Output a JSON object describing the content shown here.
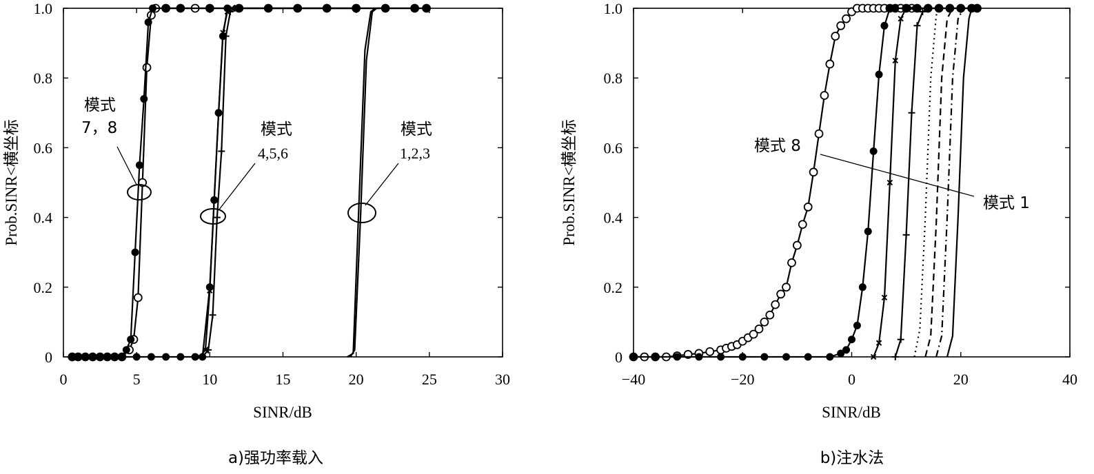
{
  "chart_data": [
    {
      "type": "line",
      "caption": "a)强功率载入",
      "xlabel": "SINR/dB",
      "ylabel": "Prob.SINR<横坐标",
      "xlim": [
        0,
        30
      ],
      "ylim": [
        0,
        1.0
      ],
      "xticks": [
        "0",
        "5",
        "10",
        "15",
        "20",
        "25",
        "30"
      ],
      "yticks": [
        "0",
        "0.2",
        "0.4",
        "0.6",
        "0.8",
        "1.0"
      ],
      "grid": false,
      "series": [
        {
          "marker": "o",
          "x": [
            0.6,
            1.0,
            1.5,
            2.0,
            2.5,
            3.0,
            3.5,
            4.0,
            4.5,
            4.8,
            5.1,
            5.4,
            5.7,
            6.0,
            6.3,
            7.0,
            8.0,
            9.0,
            10.0,
            12.0,
            14.0,
            16.0,
            18.0,
            20.0,
            22.0,
            24.0,
            24.8
          ],
          "y": [
            0,
            0,
            0,
            0,
            0,
            0,
            0,
            0,
            0.02,
            0.05,
            0.17,
            0.5,
            0.83,
            0.98,
            1.0,
            1.0,
            1.0,
            1.0,
            1.0,
            1.0,
            1.0,
            1.0,
            1.0,
            1.0,
            1.0,
            1.0,
            1.0
          ]
        },
        {
          "marker": "*",
          "x": [
            0.6,
            1.0,
            1.5,
            2.0,
            2.5,
            3.0,
            3.5,
            4.0,
            4.3,
            4.6,
            4.9,
            5.2,
            5.5,
            5.8,
            6.1,
            7.0,
            8.0,
            10.0,
            12.0,
            14.0,
            16.0,
            18.0,
            20.0,
            22.0,
            24.0,
            24.8
          ],
          "y": [
            0,
            0,
            0,
            0,
            0,
            0,
            0,
            0,
            0.02,
            0.05,
            0.3,
            0.55,
            0.74,
            0.96,
            1.0,
            1.0,
            1.0,
            1.0,
            1.0,
            1.0,
            1.0,
            1.0,
            1.0,
            1.0,
            1.0,
            1.0
          ]
        },
        {
          "marker": "*",
          "x": [
            4.0,
            5.0,
            6.0,
            7.0,
            8.0,
            9.0,
            9.5,
            10.0,
            10.3,
            10.6,
            10.9,
            11.2,
            12.0,
            14.0,
            16.0,
            18.0,
            20.0
          ],
          "y": [
            0,
            0,
            0,
            0,
            0,
            0,
            0.0,
            0.2,
            0.45,
            0.7,
            0.92,
            1.0,
            1.0,
            1.0,
            1.0,
            1.0,
            1.0
          ]
        },
        {
          "marker": "x",
          "x": [
            9.3,
            9.7,
            10.0,
            10.3,
            10.6,
            10.9,
            11.2,
            11.5
          ],
          "y": [
            0,
            0.02,
            0.19,
            0.45,
            0.7,
            0.93,
            0.99,
            1.0
          ]
        },
        {
          "marker": "+",
          "x": [
            9.5,
            9.9,
            10.2,
            10.5,
            10.8,
            11.1,
            11.4,
            11.7
          ],
          "y": [
            0,
            0.02,
            0.12,
            0.4,
            0.59,
            0.92,
            0.99,
            1.0
          ]
        },
        {
          "marker": "none",
          "x": [
            19.6,
            19.9,
            20.3,
            20.7,
            21.1,
            21.4,
            21.7
          ],
          "y": [
            0,
            0.02,
            0.4,
            0.85,
            0.99,
            1.0,
            1.0
          ]
        },
        {
          "marker": "none",
          "x": [
            19.4,
            19.8,
            20.2,
            20.6,
            21.0,
            21.3
          ],
          "y": [
            0,
            0.01,
            0.45,
            0.88,
            0.99,
            1.0
          ]
        }
      ],
      "annotations": [
        {
          "lines": [
            "模式",
            "7，8"
          ]
        },
        {
          "lines": [
            "模式",
            "4,5,6"
          ]
        },
        {
          "lines": [
            "模式",
            "1,2,3"
          ]
        }
      ]
    },
    {
      "type": "line",
      "caption": "b)注水法",
      "xlabel": "SINR/dB",
      "ylabel": "Prob.SINR<横坐标",
      "xlim": [
        -40,
        40
      ],
      "ylim": [
        0,
        1.0
      ],
      "xticks": [
        "−40",
        "−20",
        "0",
        "20",
        "40"
      ],
      "yticks": [
        "0",
        "0.2",
        "0.4",
        "0.6",
        "0.8",
        "1.0"
      ],
      "grid": false,
      "series": [
        {
          "marker": "o",
          "x": [
            -40,
            -38,
            -36,
            -34,
            -32,
            -30,
            -28,
            -26,
            -24,
            -23,
            -22,
            -21,
            -20,
            -19,
            -18,
            -17,
            -16,
            -15,
            -14,
            -13,
            -12,
            -11,
            -10,
            -9,
            -8,
            -7,
            -6,
            -5,
            -4,
            -3,
            -2,
            -1,
            0,
            1,
            2,
            3,
            4,
            5,
            6,
            7,
            8,
            9,
            10,
            11,
            12,
            14,
            16,
            18,
            20,
            22,
            23
          ],
          "y": [
            0,
            0,
            0,
            0,
            0.003,
            0.007,
            0.01,
            0.015,
            0.02,
            0.025,
            0.03,
            0.035,
            0.045,
            0.055,
            0.065,
            0.08,
            0.1,
            0.12,
            0.15,
            0.18,
            0.2,
            0.27,
            0.32,
            0.38,
            0.43,
            0.53,
            0.64,
            0.75,
            0.84,
            0.92,
            0.95,
            0.97,
            0.99,
            1.0,
            1.0,
            1.0,
            1.0,
            1.0,
            1.0,
            1.0,
            1.0,
            1.0,
            1.0,
            1.0,
            1.0,
            1.0,
            1.0,
            1.0,
            1.0,
            1.0,
            1.0
          ]
        },
        {
          "marker": "*",
          "x": [
            -40,
            -36,
            -32,
            -28,
            -24,
            -20,
            -16,
            -12,
            -8,
            -4,
            -2,
            -1,
            0,
            1,
            2,
            3,
            4,
            5,
            6,
            7,
            8,
            10,
            12,
            14,
            16,
            18,
            20,
            22,
            23
          ],
          "y": [
            0,
            0,
            0,
            0,
            0,
            0,
            0,
            0,
            0,
            0,
            0.01,
            0.02,
            0.05,
            0.09,
            0.2,
            0.36,
            0.59,
            0.81,
            0.95,
            1.0,
            1.0,
            1.0,
            1.0,
            1.0,
            1.0,
            1.0,
            1.0,
            1.0,
            1.0
          ]
        },
        {
          "marker": "x",
          "x": [
            4.0,
            5.0,
            6.0,
            7.0,
            8.0,
            9.0,
            10.0,
            11.0,
            12.0
          ],
          "y": [
            0,
            0.04,
            0.17,
            0.5,
            0.85,
            0.97,
            1.0,
            1.0,
            1.0
          ]
        },
        {
          "marker": "+",
          "x": [
            8.0,
            9.0,
            10.0,
            11.0,
            12.0,
            13.0,
            14.0
          ],
          "y": [
            0,
            0.05,
            0.35,
            0.7,
            0.95,
            0.99,
            1.0
          ]
        },
        {
          "marker": "dotted",
          "x": [
            11.5,
            12.5,
            13.5,
            14.5,
            15.5,
            16.5
          ],
          "y": [
            0,
            0.08,
            0.4,
            0.8,
            0.98,
            1.0
          ]
        },
        {
          "marker": "dashed",
          "x": [
            13.5,
            14.5,
            15.5,
            16.5,
            17.5,
            18.5
          ],
          "y": [
            0,
            0.06,
            0.38,
            0.8,
            0.97,
            1.0
          ]
        },
        {
          "marker": "dashdot",
          "x": [
            15.5,
            16.5,
            17.5,
            18.5,
            19.5,
            20.5
          ],
          "y": [
            0,
            0.06,
            0.4,
            0.8,
            0.97,
            1.0
          ]
        },
        {
          "marker": "none",
          "x": [
            17.5,
            18.5,
            19.5,
            20.5,
            21.5,
            22.0
          ],
          "y": [
            0,
            0.06,
            0.4,
            0.8,
            0.97,
            1.0
          ]
        }
      ],
      "annotations": [
        {
          "lines": [
            "模式 8"
          ]
        },
        {
          "lines": [
            "模式 1"
          ]
        }
      ]
    }
  ]
}
